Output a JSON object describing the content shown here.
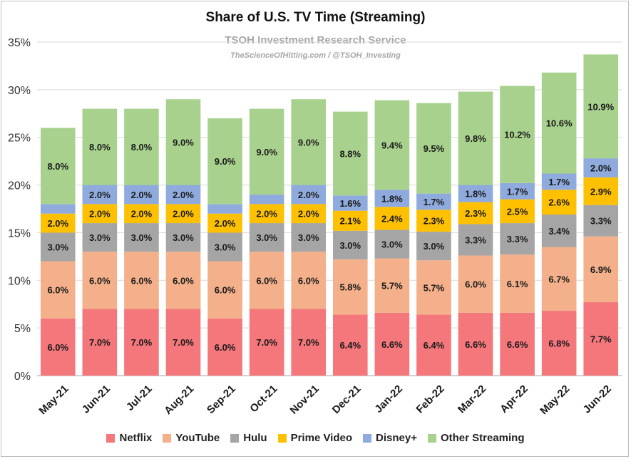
{
  "chart_data": {
    "type": "bar",
    "stacked": true,
    "title": "Share of U.S. TV Time (Streaming)",
    "subtitle": "TSOH Investment Research Service",
    "credit": "TheScienceOfHitting.com / @TSOH_Investing",
    "ylim": [
      0,
      35
    ],
    "yticks": [
      "0%",
      "5%",
      "10%",
      "15%",
      "20%",
      "25%",
      "30%",
      "35%"
    ],
    "categories": [
      "May-21",
      "Jun-21",
      "Jul-21",
      "Aug-21",
      "Sep-21",
      "Oct-21",
      "Nov-21",
      "Dec-21",
      "Jan-22",
      "Feb-22",
      "Mar-22",
      "Apr-22",
      "May-22",
      "Jun-22"
    ],
    "series": [
      {
        "name": "Netflix",
        "color": "#f4777b",
        "values": [
          6.0,
          7.0,
          7.0,
          7.0,
          6.0,
          7.0,
          7.0,
          6.4,
          6.6,
          6.4,
          6.6,
          6.6,
          6.8,
          7.7
        ]
      },
      {
        "name": "YouTube",
        "color": "#f3b08a",
        "values": [
          6.0,
          6.0,
          6.0,
          6.0,
          6.0,
          6.0,
          6.0,
          5.8,
          5.7,
          5.7,
          6.0,
          6.1,
          6.7,
          6.9
        ]
      },
      {
        "name": "Hulu",
        "color": "#a5a5a5",
        "values": [
          3.0,
          3.0,
          3.0,
          3.0,
          3.0,
          3.0,
          3.0,
          3.0,
          3.0,
          3.0,
          3.3,
          3.3,
          3.4,
          3.3
        ]
      },
      {
        "name": "Prime Video",
        "color": "#ffc000",
        "values": [
          2.0,
          2.0,
          2.0,
          2.0,
          2.0,
          2.0,
          2.0,
          2.1,
          2.4,
          2.3,
          2.3,
          2.5,
          2.6,
          2.9
        ]
      },
      {
        "name": "Disney+",
        "color": "#8faadc",
        "values": [
          1.0,
          2.0,
          2.0,
          2.0,
          1.0,
          1.0,
          2.0,
          1.6,
          1.8,
          1.7,
          1.8,
          1.7,
          1.7,
          2.0
        ]
      },
      {
        "name": "Other Streaming",
        "color": "#a9d18e",
        "values": [
          8.0,
          8.0,
          8.0,
          9.0,
          9.0,
          9.0,
          9.0,
          8.8,
          9.4,
          9.5,
          9.8,
          10.2,
          10.6,
          10.9
        ]
      }
    ],
    "data_labels": [
      [
        "6.0%",
        "6.0%",
        "3.0%",
        "2.0%",
        "",
        "8.0%"
      ],
      [
        "7.0%",
        "6.0%",
        "3.0%",
        "2.0%",
        "2.0%",
        "8.0%"
      ],
      [
        "7.0%",
        "6.0%",
        "3.0%",
        "2.0%",
        "2.0%",
        "8.0%"
      ],
      [
        "7.0%",
        "6.0%",
        "3.0%",
        "2.0%",
        "2.0%",
        "9.0%"
      ],
      [
        "6.0%",
        "6.0%",
        "3.0%",
        "2.0%",
        "",
        "9.0%"
      ],
      [
        "7.0%",
        "6.0%",
        "3.0%",
        "2.0%",
        "",
        "9.0%"
      ],
      [
        "7.0%",
        "6.0%",
        "3.0%",
        "2.0%",
        "2.0%",
        "9.0%"
      ],
      [
        "6.4%",
        "5.8%",
        "3.0%",
        "2.1%",
        "1.6%",
        "8.8%"
      ],
      [
        "6.6%",
        "5.7%",
        "3.0%",
        "2.4%",
        "1.8%",
        "9.4%"
      ],
      [
        "6.4%",
        "5.7%",
        "3.0%",
        "2.3%",
        "1.7%",
        "9.5%"
      ],
      [
        "6.6%",
        "6.0%",
        "3.3%",
        "2.3%",
        "1.8%",
        "9.8%"
      ],
      [
        "6.6%",
        "6.1%",
        "3.3%",
        "2.5%",
        "1.7%",
        "10.2%"
      ],
      [
        "6.8%",
        "6.7%",
        "3.4%",
        "2.6%",
        "1.7%",
        "10.6%"
      ],
      [
        "7.7%",
        "6.9%",
        "3.3%",
        "2.9%",
        "2.0%",
        "10.9%"
      ]
    ],
    "grid": true,
    "legend_position": "bottom"
  }
}
